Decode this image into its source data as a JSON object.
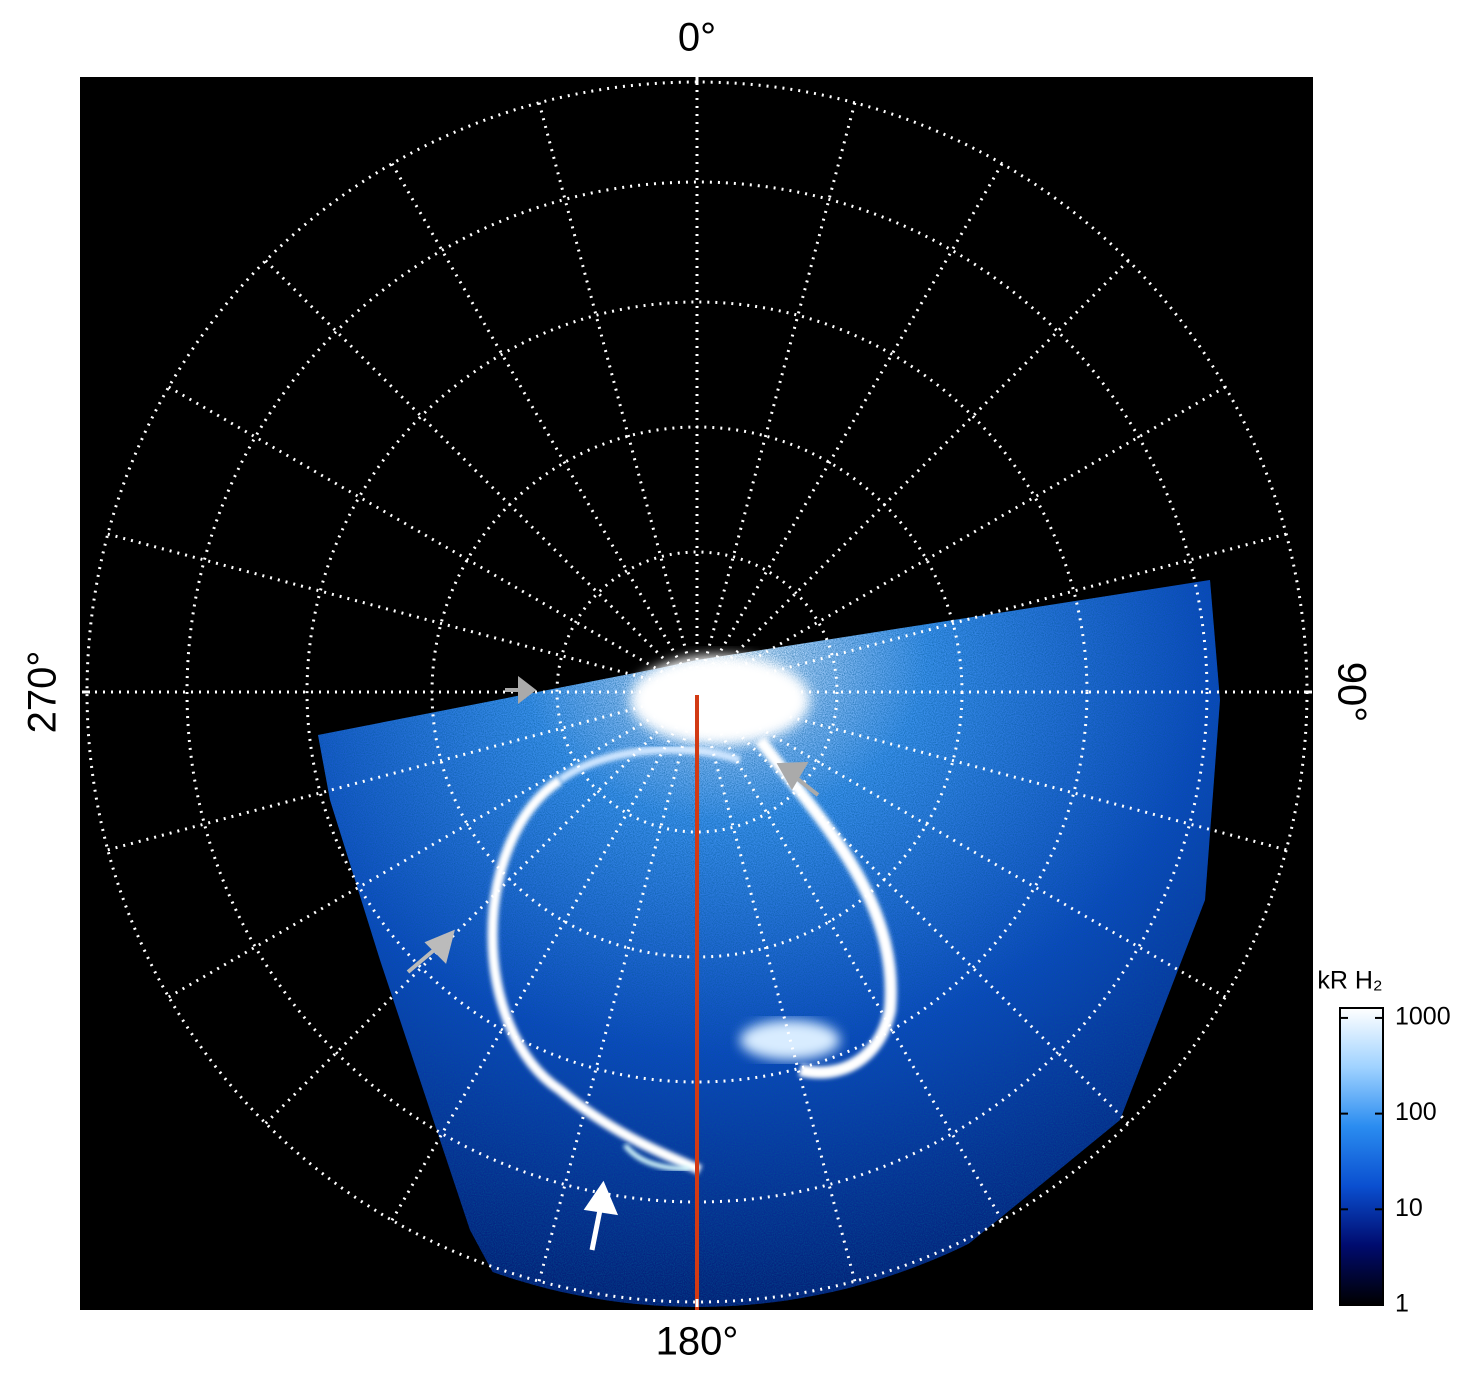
{
  "chart_data": {
    "type": "polar-image",
    "angle_ticks": [
      {
        "value": 0,
        "label": "0°"
      },
      {
        "value": 90,
        "label": "90°"
      },
      {
        "value": 180,
        "label": "180°"
      },
      {
        "value": 270,
        "label": "270°"
      }
    ],
    "grid": true,
    "colorbar": {
      "title": "kR H₂",
      "scale": "log",
      "clim": [
        1,
        1270
      ],
      "ticks": [
        1,
        10,
        100,
        1000
      ],
      "colormap": [
        "#000000",
        "#000b6e",
        "#0a4fd0",
        "#2a8cf0",
        "#9fd2ff",
        "#ffffff"
      ]
    },
    "meridian_color": "#d23a14"
  }
}
